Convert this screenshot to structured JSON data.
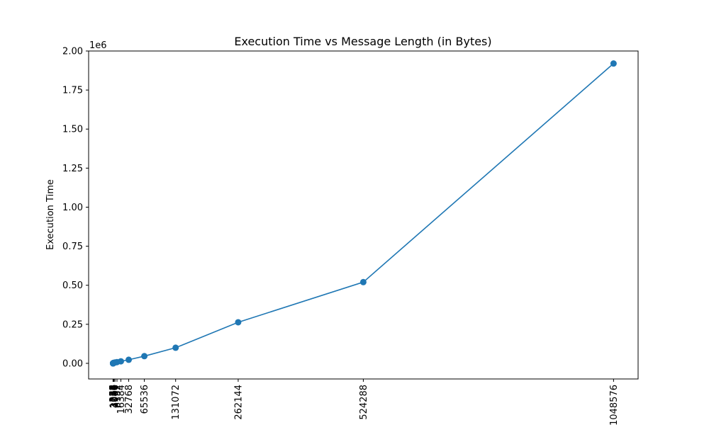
{
  "chart_data": {
    "type": "line",
    "title": "Execution Time vs Message Length (in Bytes)",
    "xlabel": "",
    "ylabel": "Execution Time",
    "y_offset_label": "1e6",
    "xlim": [
      -51200,
      1100000
    ],
    "ylim": [
      -100000,
      2000000
    ],
    "marker": "circle",
    "line_color": "#1f77b4",
    "grid": false,
    "x_tick_label_rotation": "vertical",
    "x": [
      1,
      2,
      4,
      8,
      16,
      32,
      64,
      128,
      256,
      512,
      1024,
      2048,
      4096,
      8192,
      16384,
      32768,
      65536,
      131072,
      262144,
      524288,
      1048576
    ],
    "y": [
      30,
      40,
      60,
      100,
      150,
      250,
      400,
      700,
      1200,
      2000,
      2500,
      3500,
      5500,
      8000,
      13000,
      23000,
      46000,
      100000,
      263000,
      520000,
      1920000
    ],
    "x_ticks": [
      {
        "value": 1,
        "label": "1"
      },
      {
        "value": 2,
        "label": "2"
      },
      {
        "value": 4,
        "label": "4"
      },
      {
        "value": 8,
        "label": "8"
      },
      {
        "value": 16,
        "label": "16"
      },
      {
        "value": 32,
        "label": "32"
      },
      {
        "value": 64,
        "label": "64"
      },
      {
        "value": 128,
        "label": "128"
      },
      {
        "value": 256,
        "label": "256"
      },
      {
        "value": 512,
        "label": "512"
      },
      {
        "value": 1024,
        "label": "1024"
      },
      {
        "value": 2048,
        "label": "2048"
      },
      {
        "value": 4096,
        "label": "4096"
      },
      {
        "value": 8192,
        "label": "8192"
      },
      {
        "value": 16384,
        "label": "16384"
      },
      {
        "value": 32768,
        "label": "32768"
      },
      {
        "value": 65536,
        "label": "65536"
      },
      {
        "value": 131072,
        "label": "131072"
      },
      {
        "value": 262144,
        "label": "262144"
      },
      {
        "value": 524288,
        "label": "524288"
      },
      {
        "value": 1048576,
        "label": "1048576"
      }
    ],
    "y_ticks": [
      {
        "value": 0,
        "label": "0.00"
      },
      {
        "value": 250000,
        "label": "0.25"
      },
      {
        "value": 500000,
        "label": "0.50"
      },
      {
        "value": 750000,
        "label": "0.75"
      },
      {
        "value": 1000000,
        "label": "1.00"
      },
      {
        "value": 1250000,
        "label": "1.25"
      },
      {
        "value": 1500000,
        "label": "1.50"
      },
      {
        "value": 1750000,
        "label": "1.75"
      },
      {
        "value": 2000000,
        "label": "2.00"
      }
    ]
  }
}
